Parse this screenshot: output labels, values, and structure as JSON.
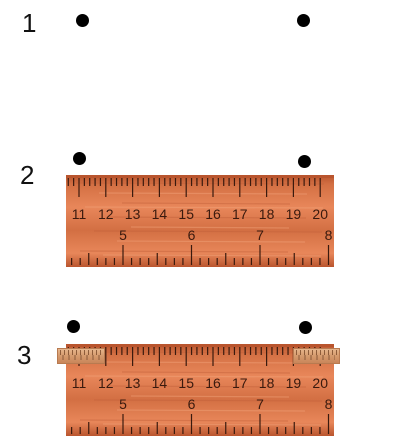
{
  "steps": [
    {
      "label": "1"
    },
    {
      "label": "2"
    },
    {
      "label": "3"
    }
  ],
  "ruler": {
    "top_numbers": [
      "11",
      "12",
      "13",
      "14",
      "15",
      "16",
      "17",
      "18",
      "19",
      "20"
    ],
    "bottom_numbers": [
      "5",
      "6",
      "7",
      "8"
    ]
  },
  "colors": {
    "ruler_light": "#e8875a",
    "ruler_mid": "#d36f43",
    "ruler_dark": "#b9552e",
    "tick": "#3a1a0e",
    "dot": "#000000"
  }
}
